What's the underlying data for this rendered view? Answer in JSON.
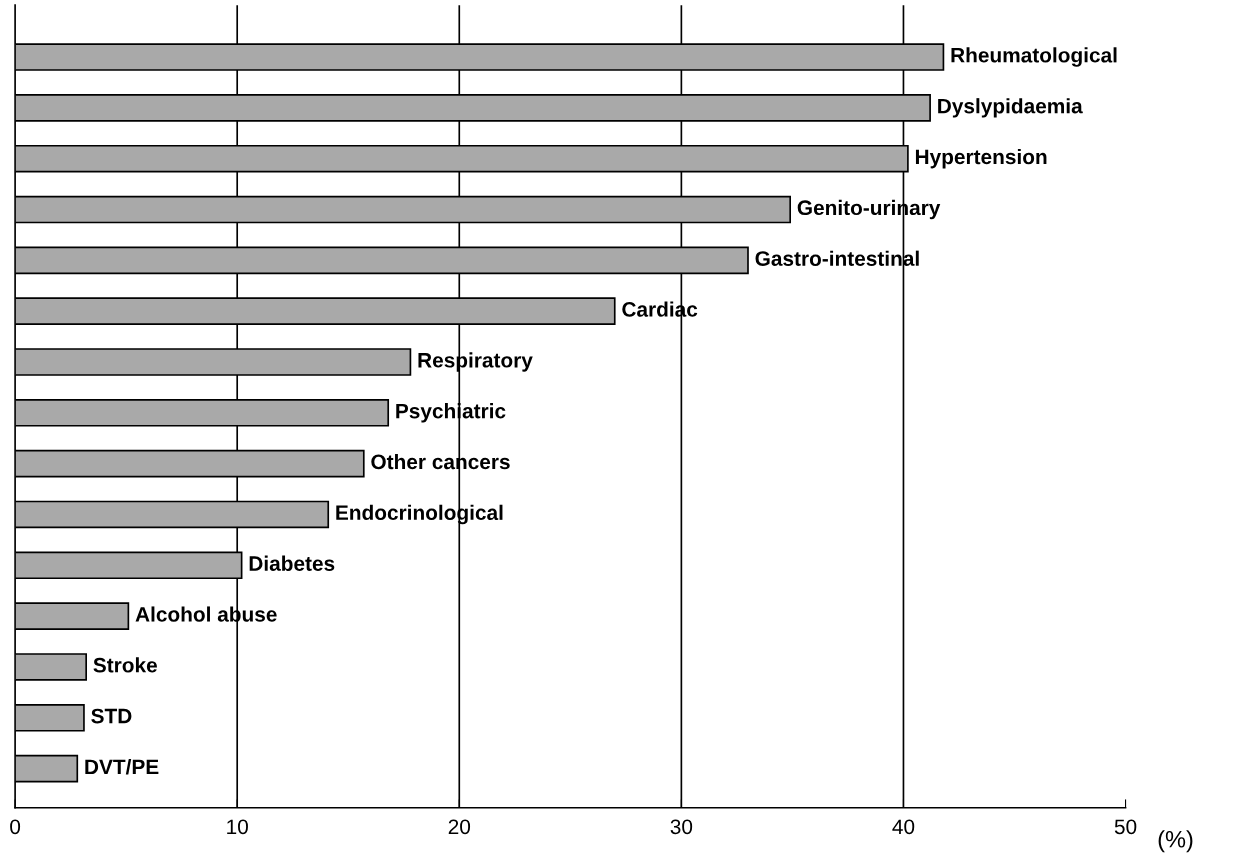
{
  "chart_data": {
    "type": "bar",
    "orientation": "horizontal",
    "xlabel": "(%)",
    "categories": [
      "Rheumatological",
      "Dyslypidaemia",
      "Hypertension",
      "Genito-urinary",
      "Gastro-intestinal",
      "Cardiac",
      "Respiratory",
      "Psychiatric",
      "Other cancers",
      "Endocrinological",
      "Diabetes",
      "Alcohol abuse",
      "Stroke",
      "STD",
      "DVT/PE"
    ],
    "values": [
      41.8,
      41.2,
      40.2,
      34.9,
      33.0,
      27.0,
      17.8,
      16.8,
      15.7,
      14.1,
      10.2,
      5.1,
      3.2,
      3.1,
      2.8
    ],
    "color": "#a9a9a9",
    "xlim": [
      0,
      50
    ],
    "xticks": [
      0,
      10,
      20,
      30,
      40,
      50
    ],
    "grid": "x",
    "tick_labels": "x"
  }
}
